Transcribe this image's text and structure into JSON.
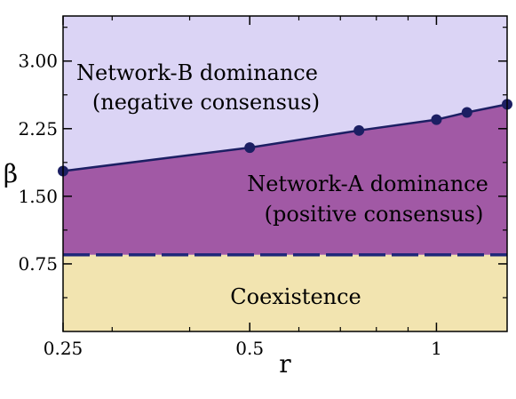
{
  "chart_data": {
    "type": "area",
    "title": "",
    "xlabel": "r",
    "ylabel": "β",
    "x_scale": "log",
    "xlim": [
      0.25,
      1.3
    ],
    "ylim": [
      0.0,
      3.5
    ],
    "x_ticks": [
      0.25,
      0.5,
      1
    ],
    "x_tick_labels": [
      "0.25",
      "0.5",
      "1"
    ],
    "y_ticks": [
      0.75,
      1.5,
      2.25,
      3.0
    ],
    "y_tick_labels": [
      "0.75",
      "1.50",
      "2.25",
      "3.00"
    ],
    "boundary_curve": {
      "x": [
        0.25,
        0.5,
        0.75,
        1.0,
        1.12,
        1.3
      ],
      "y": [
        1.78,
        2.04,
        2.23,
        2.35,
        2.43,
        2.52
      ]
    },
    "threshold_line": {
      "y": 0.85,
      "style": "dashed"
    },
    "regions": [
      {
        "key": "b",
        "line1": "Network-B dominance",
        "line2": "(negative consensus)",
        "color": "#dbd4f5"
      },
      {
        "key": "a",
        "line1": "Network-A dominance",
        "line2": "(positive consensus)",
        "color": "#a159a5"
      },
      {
        "key": "c",
        "line1": "Coexistence",
        "line2": "",
        "color": "#f2e4b0"
      }
    ],
    "line_color": "#1c1f63",
    "threshold_line_color": "#20287a",
    "grid": false,
    "legend": "none"
  }
}
